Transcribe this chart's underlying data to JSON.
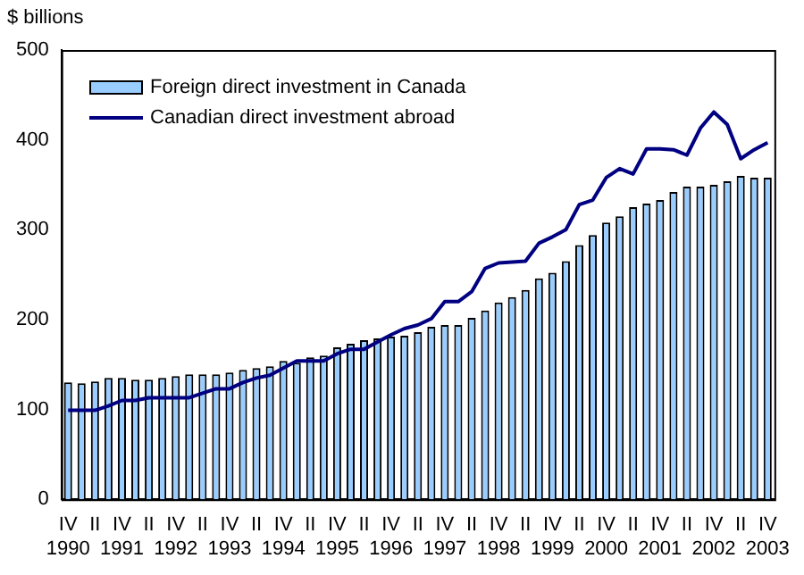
{
  "chart_data": {
    "type": "bar",
    "ylabel": "$ billions",
    "categories": [
      "IV 1990",
      null,
      "II",
      null,
      "IV 1991",
      null,
      "II",
      null,
      "IV 1992",
      null,
      "II",
      null,
      "IV 1993",
      null,
      "II",
      null,
      "IV 1994",
      null,
      "II",
      null,
      "IV 1995",
      null,
      "II",
      null,
      "IV 1996",
      null,
      "II",
      null,
      "IV 1997",
      null,
      "II",
      null,
      "IV 1998",
      null,
      "II",
      null,
      "IV 1999",
      null,
      "II",
      null,
      "IV 2000",
      null,
      "II",
      null,
      "IV 2001",
      null,
      "II",
      null,
      "IV 2002",
      null,
      "II",
      null,
      "IV 2003"
    ],
    "series": [
      {
        "name": "Foreign direct investment in Canada",
        "color": "#99ccff",
        "values": [
          130,
          129,
          131,
          135,
          135,
          133,
          133,
          135,
          137,
          139,
          139,
          139,
          141,
          144,
          146,
          148,
          154,
          152,
          158,
          160,
          169,
          173,
          177,
          179,
          181,
          182,
          186,
          192,
          194,
          194,
          202,
          210,
          219,
          225,
          233,
          246,
          252,
          265,
          283,
          294,
          308,
          315,
          325,
          329,
          333,
          342,
          348,
          348,
          350,
          354,
          360,
          358,
          358
        ]
      },
      {
        "name": "Canadian direct investment abroad",
        "type": "line",
        "color": "#000080",
        "values": [
          99,
          99,
          99,
          104,
          110,
          110,
          113,
          113,
          113,
          113,
          118,
          123,
          123,
          130,
          135,
          138,
          146,
          154,
          154,
          154,
          162,
          167,
          167,
          175,
          183,
          190,
          194,
          201,
          220,
          220,
          231,
          257,
          263,
          264,
          265,
          285,
          292,
          300,
          328,
          333,
          358,
          368,
          362,
          390,
          390,
          389,
          383,
          413,
          431,
          417,
          379,
          389,
          397
        ]
      }
    ],
    "ylim": [
      0,
      500
    ],
    "yticks": [
      0,
      100,
      200,
      300,
      400,
      500
    ],
    "grid": false,
    "legend": "top left",
    "marker": "none"
  }
}
